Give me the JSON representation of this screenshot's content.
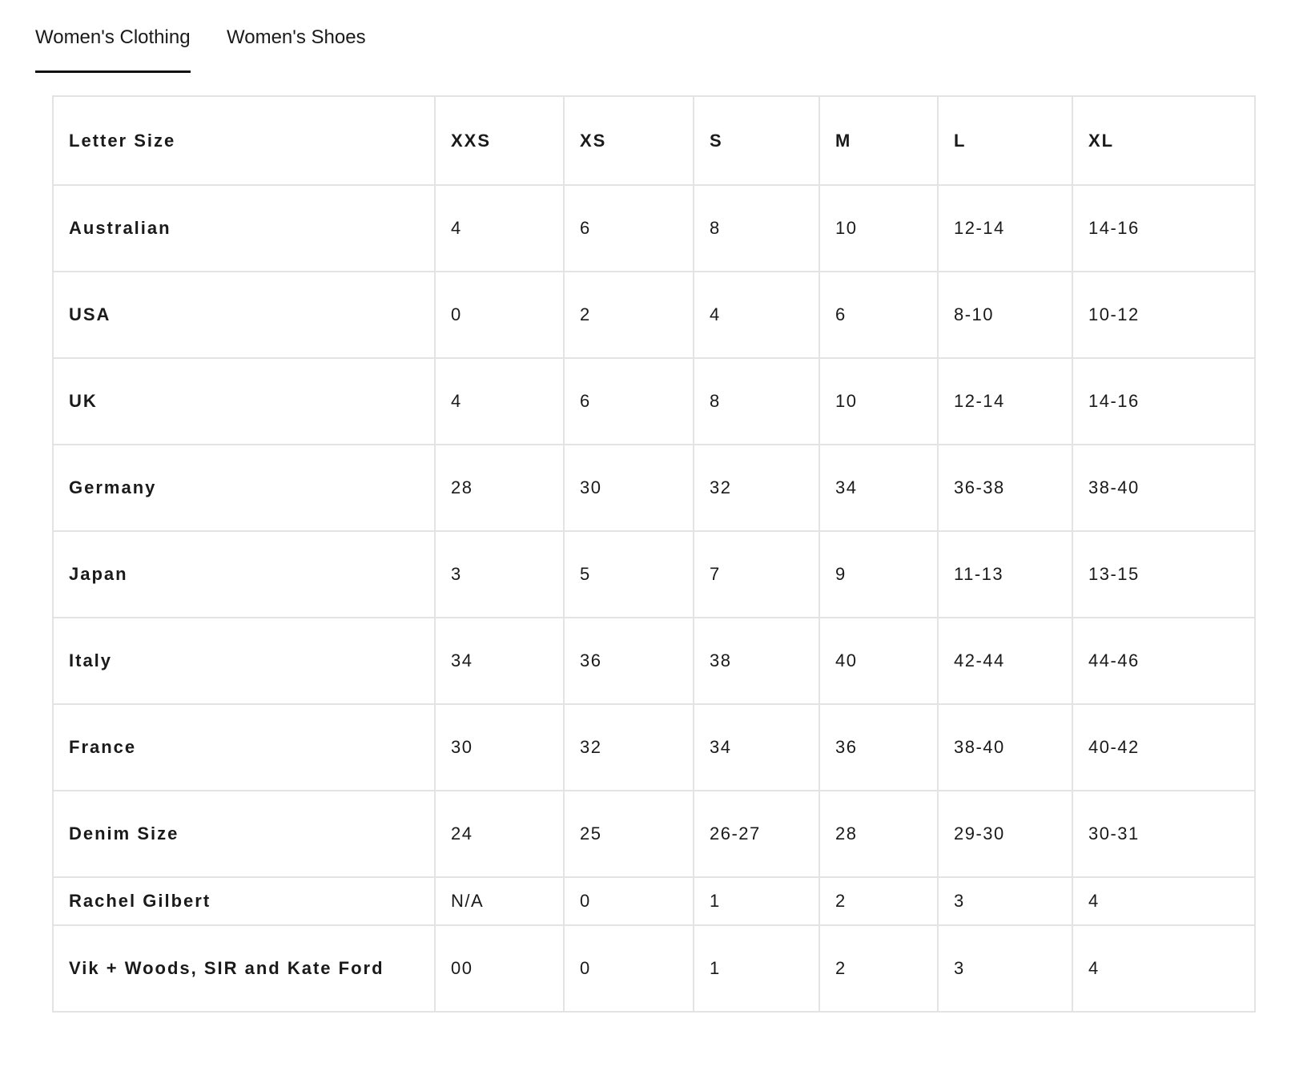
{
  "tabs": [
    {
      "label": "Women's Clothing",
      "active": true
    },
    {
      "label": "Women's Shoes",
      "active": false
    }
  ],
  "table": {
    "columns": [
      "Letter Size",
      "XXS",
      "XS",
      "S",
      "M",
      "L",
      "XL"
    ],
    "rows": [
      {
        "label": "Australian",
        "values": [
          "4",
          "6",
          "8",
          "10",
          "12-14",
          "14-16"
        ]
      },
      {
        "label": "USA",
        "values": [
          "0",
          "2",
          "4",
          "6",
          "8-10",
          "10-12"
        ]
      },
      {
        "label": "UK",
        "values": [
          "4",
          "6",
          "8",
          "10",
          "12-14",
          "14-16"
        ]
      },
      {
        "label": "Germany",
        "values": [
          "28",
          "30",
          "32",
          "34",
          "36-38",
          "38-40"
        ]
      },
      {
        "label": "Japan",
        "values": [
          "3",
          "5",
          "7",
          "9",
          "11-13",
          "13-15"
        ]
      },
      {
        "label": "Italy",
        "values": [
          "34",
          "36",
          "38",
          "40",
          "42-44",
          "44-46"
        ]
      },
      {
        "label": "France",
        "values": [
          "30",
          "32",
          "34",
          "36",
          "38-40",
          "40-42"
        ]
      },
      {
        "label": "Denim Size",
        "values": [
          "24",
          "25",
          "26-27",
          "28",
          "29-30",
          "30-31"
        ]
      },
      {
        "label": "Rachel Gilbert",
        "values": [
          "N/A",
          "0",
          "1",
          "2",
          "3",
          "4"
        ]
      },
      {
        "label": "Vik + Woods, SIR and Kate Ford",
        "values": [
          "00",
          "0",
          "1",
          "2",
          "3",
          "4"
        ]
      }
    ]
  },
  "colors": {
    "text": "#1a1a1a",
    "border": "#e3e3e3",
    "active_tab_underline": "#111111",
    "background": "#ffffff"
  }
}
